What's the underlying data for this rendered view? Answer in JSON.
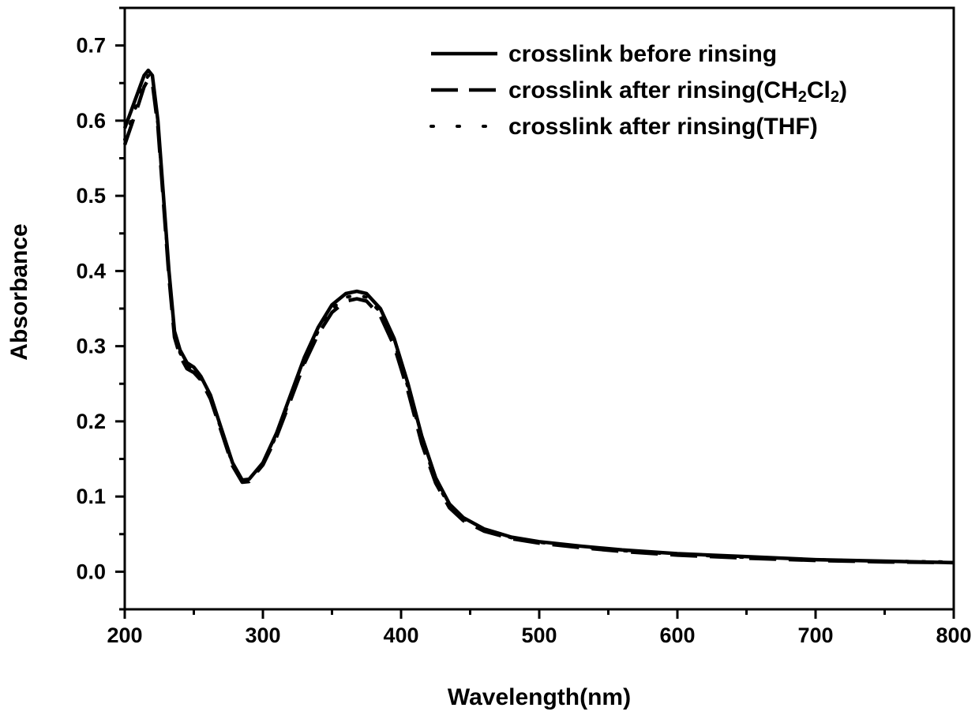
{
  "chart_data": {
    "type": "line",
    "title": "",
    "xlabel": "Wavelength(nm)",
    "ylabel": "Absorbance",
    "xlim": [
      200,
      800
    ],
    "ylim": [
      -0.05,
      0.75
    ],
    "xticks": [
      200,
      300,
      400,
      500,
      600,
      700,
      800
    ],
    "yticks": [
      0.0,
      0.1,
      0.2,
      0.3,
      0.4,
      0.5,
      0.6,
      0.7
    ],
    "xtick_labels": [
      "200",
      "300",
      "400",
      "500",
      "600",
      "700",
      "800"
    ],
    "ytick_labels": [
      "0.0",
      "0.1",
      "0.2",
      "0.3",
      "0.4",
      "0.5",
      "0.6",
      "0.7"
    ],
    "grid": false,
    "legend_position": "top-right",
    "series": [
      {
        "name_prefix": "crosslink before rinsing",
        "name_sub1": "",
        "name_mid": "",
        "name_sub2": "",
        "name_suffix": "",
        "style": "solid",
        "color": "#000000",
        "points": [
          [
            200,
            0.59
          ],
          [
            205,
            0.615
          ],
          [
            210,
            0.64
          ],
          [
            214,
            0.66
          ],
          [
            217,
            0.667
          ],
          [
            220,
            0.66
          ],
          [
            224,
            0.6
          ],
          [
            228,
            0.5
          ],
          [
            232,
            0.4
          ],
          [
            236,
            0.32
          ],
          [
            240,
            0.295
          ],
          [
            245,
            0.278
          ],
          [
            250,
            0.272
          ],
          [
            255,
            0.26
          ],
          [
            262,
            0.235
          ],
          [
            270,
            0.19
          ],
          [
            278,
            0.145
          ],
          [
            285,
            0.122
          ],
          [
            290,
            0.123
          ],
          [
            300,
            0.145
          ],
          [
            310,
            0.185
          ],
          [
            320,
            0.235
          ],
          [
            330,
            0.285
          ],
          [
            340,
            0.325
          ],
          [
            350,
            0.355
          ],
          [
            360,
            0.37
          ],
          [
            368,
            0.373
          ],
          [
            375,
            0.37
          ],
          [
            385,
            0.35
          ],
          [
            395,
            0.31
          ],
          [
            405,
            0.25
          ],
          [
            415,
            0.18
          ],
          [
            425,
            0.125
          ],
          [
            435,
            0.09
          ],
          [
            445,
            0.072
          ],
          [
            460,
            0.057
          ],
          [
            480,
            0.046
          ],
          [
            500,
            0.04
          ],
          [
            530,
            0.034
          ],
          [
            560,
            0.029
          ],
          [
            600,
            0.024
          ],
          [
            650,
            0.02
          ],
          [
            700,
            0.016
          ],
          [
            750,
            0.014
          ],
          [
            800,
            0.012
          ]
        ]
      },
      {
        "name_prefix": "crosslink after rinsing(CH",
        "name_sub1": "2",
        "name_mid": "Cl",
        "name_sub2": "2",
        "name_suffix": ")",
        "style": "dashed",
        "color": "#000000",
        "points": [
          [
            200,
            0.568
          ],
          [
            205,
            0.595
          ],
          [
            210,
            0.622
          ],
          [
            214,
            0.645
          ],
          [
            217,
            0.655
          ],
          [
            220,
            0.65
          ],
          [
            224,
            0.592
          ],
          [
            228,
            0.492
          ],
          [
            232,
            0.392
          ],
          [
            236,
            0.312
          ],
          [
            240,
            0.287
          ],
          [
            245,
            0.27
          ],
          [
            250,
            0.265
          ],
          [
            255,
            0.255
          ],
          [
            262,
            0.23
          ],
          [
            270,
            0.186
          ],
          [
            278,
            0.141
          ],
          [
            285,
            0.119
          ],
          [
            290,
            0.12
          ],
          [
            300,
            0.142
          ],
          [
            310,
            0.18
          ],
          [
            320,
            0.228
          ],
          [
            330,
            0.277
          ],
          [
            340,
            0.316
          ],
          [
            350,
            0.345
          ],
          [
            360,
            0.36
          ],
          [
            368,
            0.363
          ],
          [
            375,
            0.36
          ],
          [
            385,
            0.34
          ],
          [
            395,
            0.3
          ],
          [
            405,
            0.24
          ],
          [
            415,
            0.17
          ],
          [
            425,
            0.118
          ],
          [
            435,
            0.085
          ],
          [
            445,
            0.068
          ],
          [
            460,
            0.054
          ],
          [
            480,
            0.044
          ],
          [
            500,
            0.038
          ],
          [
            530,
            0.032
          ],
          [
            560,
            0.027
          ],
          [
            600,
            0.022
          ],
          [
            650,
            0.018
          ],
          [
            700,
            0.015
          ],
          [
            750,
            0.013
          ],
          [
            800,
            0.012
          ]
        ]
      },
      {
        "name_prefix": "crosslink after rinsing(THF)",
        "name_sub1": "",
        "name_mid": "",
        "name_sub2": "",
        "name_suffix": "",
        "style": "dotted",
        "color": "#000000",
        "points": [
          [
            200,
            0.575
          ],
          [
            205,
            0.602
          ],
          [
            210,
            0.628
          ],
          [
            214,
            0.65
          ],
          [
            217,
            0.66
          ],
          [
            220,
            0.654
          ],
          [
            224,
            0.595
          ],
          [
            228,
            0.496
          ],
          [
            232,
            0.396
          ],
          [
            236,
            0.316
          ],
          [
            240,
            0.291
          ],
          [
            245,
            0.274
          ],
          [
            250,
            0.268
          ],
          [
            255,
            0.257
          ],
          [
            262,
            0.232
          ],
          [
            270,
            0.188
          ],
          [
            278,
            0.143
          ],
          [
            285,
            0.12
          ],
          [
            290,
            0.121
          ],
          [
            300,
            0.143
          ],
          [
            310,
            0.182
          ],
          [
            320,
            0.231
          ],
          [
            330,
            0.28
          ],
          [
            340,
            0.32
          ],
          [
            350,
            0.35
          ],
          [
            360,
            0.365
          ],
          [
            368,
            0.368
          ],
          [
            375,
            0.365
          ],
          [
            385,
            0.345
          ],
          [
            395,
            0.305
          ],
          [
            405,
            0.245
          ],
          [
            415,
            0.175
          ],
          [
            425,
            0.121
          ],
          [
            435,
            0.087
          ],
          [
            445,
            0.07
          ],
          [
            460,
            0.056
          ],
          [
            480,
            0.045
          ],
          [
            500,
            0.039
          ],
          [
            530,
            0.033
          ],
          [
            560,
            0.028
          ],
          [
            600,
            0.023
          ],
          [
            650,
            0.019
          ],
          [
            700,
            0.016
          ],
          [
            750,
            0.014
          ],
          [
            800,
            0.013
          ]
        ]
      }
    ]
  }
}
